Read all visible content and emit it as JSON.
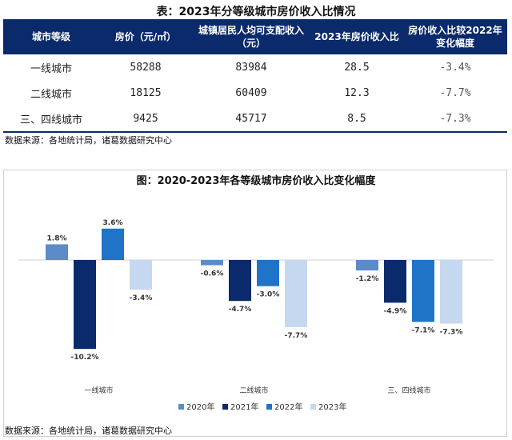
{
  "table": {
    "title": "表：2023年分等级城市房价收入比情况",
    "headers": [
      "城市等级",
      "房价（元/㎡）",
      "城镇居民人均可支配收入（元）",
      "2023年房价收入比",
      "房价收入比较2022年变化幅度"
    ],
    "rows": [
      {
        "city": "一线城市",
        "price": "58288",
        "income": "83984",
        "ratio": "28.5",
        "change": "-3.4%"
      },
      {
        "city": "二线城市",
        "price": "18125",
        "income": "60409",
        "ratio": "12.3",
        "change": "-7.7%"
      },
      {
        "city": "三、四线城市",
        "price": "9425",
        "income": "45717",
        "ratio": "8.5",
        "change": "-7.3%"
      }
    ],
    "source": "数据来源：各地统计局，诸葛数据研究中心"
  },
  "chart_data": {
    "type": "bar",
    "title": "图：2020-2023年各等级城市房价收入比变化幅度",
    "categories": [
      "一线城市",
      "二线城市",
      "三、四线城市"
    ],
    "series": [
      {
        "name": "2020年",
        "values": [
          1.8,
          -0.6,
          -1.2
        ],
        "color": "#5b8cc8"
      },
      {
        "name": "2021年",
        "values": [
          -10.2,
          -4.7,
          -4.9
        ],
        "color": "#0a2a6b"
      },
      {
        "name": "2022年",
        "values": [
          3.6,
          -3.0,
          -7.1
        ],
        "color": "#1f74c8"
      },
      {
        "name": "2023年",
        "values": [
          -3.4,
          -7.7,
          -7.3
        ],
        "color": "#c6d8ef"
      }
    ],
    "value_labels": [
      [
        "1.8%",
        "-0.6%",
        "-1.2%"
      ],
      [
        "-10.2%",
        "-4.7%",
        "-4.9%"
      ],
      [
        "3.6%",
        "-3.0%",
        "-7.1%"
      ],
      [
        "-3.4%",
        "-7.7%",
        "-7.3%"
      ]
    ],
    "ylim": [
      -10.2,
      3.6
    ],
    "legend_position": "bottom",
    "source": "数据来源：各地统计局，诸葛数据研究中心"
  }
}
